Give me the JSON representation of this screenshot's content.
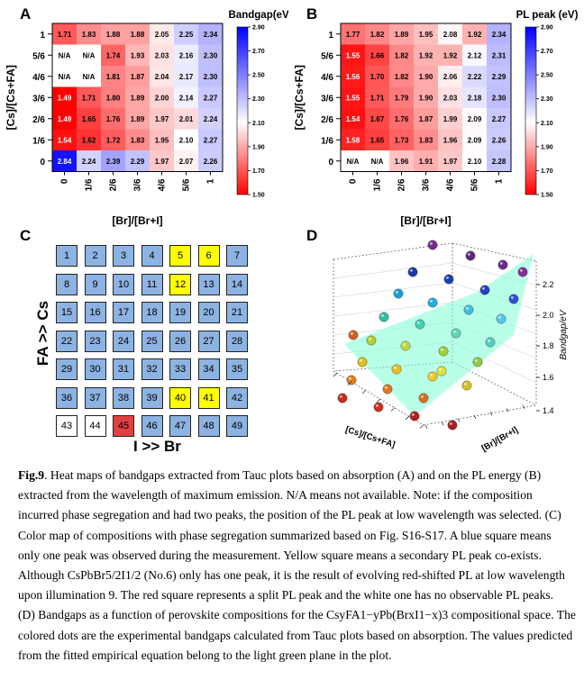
{
  "panels": {
    "A": {
      "letter": "A"
    },
    "B": {
      "letter": "B"
    },
    "C": {
      "letter": "C"
    },
    "D": {
      "letter": "D"
    }
  },
  "chart_data": [
    {
      "type": "heatmap",
      "panel": "A",
      "colorbar_title": "Bandgap(eV)",
      "xlabel": "[Br]/[Br+I]",
      "ylabel": "[Cs]/[Cs+FA]",
      "x_ticks": [
        "0",
        "1/6",
        "2/6",
        "3/6",
        "4/6",
        "5/6",
        "1"
      ],
      "y_ticks": [
        "1",
        "5/6",
        "4/6",
        "3/6",
        "2/6",
        "1/6",
        "0"
      ],
      "cells": [
        [
          "1.71",
          "1.83",
          "1.88",
          "1.88",
          "2.05",
          "2.25",
          "2.34"
        ],
        [
          "N/A",
          "N/A",
          "1.74",
          "1.93",
          "2.03",
          "2.16",
          "2.30"
        ],
        [
          "N/A",
          "N/A",
          "1.81",
          "1.87",
          "2.04",
          "2.17",
          "2.30"
        ],
        [
          "1.49",
          "1.71",
          "1.80",
          "1.89",
          "2.00",
          "2.14",
          "2.27"
        ],
        [
          "1.49",
          "1.65",
          "1.76",
          "1.89",
          "1.97",
          "2.01",
          "2.24"
        ],
        [
          "1.54",
          "1.62",
          "1.72",
          "1.83",
          "1.95",
          "2.10",
          "2.27"
        ],
        [
          "2.84",
          "2.24",
          "2.39",
          "2.29",
          "1.97",
          "2.07",
          "2.26"
        ]
      ],
      "colorbar_ticks": [
        "2.90",
        "2.70",
        "2.50",
        "2.30",
        "2.10",
        "1.90",
        "1.70",
        "1.50"
      ],
      "range": [
        1.5,
        2.9
      ]
    },
    {
      "type": "heatmap",
      "panel": "B",
      "colorbar_title": "PL peak (eV)",
      "xlabel": "[Br]/[Br+I]",
      "ylabel": "[Cs]/[Cs+FA]",
      "x_ticks": [
        "0",
        "1/6",
        "2/6",
        "3/6",
        "4/6",
        "5/6",
        "1"
      ],
      "y_ticks": [
        "1",
        "5/6",
        "4/6",
        "3/6",
        "2/6",
        "1/6",
        "0"
      ],
      "cells": [
        [
          "1.77",
          "1.82",
          "1.89",
          "1.95",
          "2.08",
          "1.92",
          "2.34"
        ],
        [
          "1.55",
          "1.66",
          "1.82",
          "1.92",
          "1.92",
          "2.12",
          "2.31"
        ],
        [
          "1.56",
          "1.70",
          "1.82",
          "1.90",
          "2.06",
          "2.22",
          "2.29"
        ],
        [
          "1.55",
          "1.71",
          "1.79",
          "1.90",
          "2.03",
          "2.18",
          "2.30"
        ],
        [
          "1.54",
          "1.67",
          "1.76",
          "1.87",
          "1.99",
          "2.09",
          "2.27"
        ],
        [
          "1.58",
          "1.65",
          "1.73",
          "1.83",
          "1.96",
          "2.09",
          "2.26"
        ],
        [
          "N/A",
          "N/A",
          "1.96",
          "1.91",
          "1.97",
          "2.10",
          "2.28"
        ]
      ],
      "colorbar_ticks": [
        "2.90",
        "2.70",
        "2.50",
        "2.30",
        "2.10",
        "1.90",
        "1.70",
        "1.50"
      ],
      "range": [
        1.5,
        2.9
      ]
    },
    {
      "type": "table",
      "panel": "C",
      "ylabel": "FA >> Cs",
      "xlabel": "I >> Br",
      "numbers": [
        [
          "1",
          "2",
          "3",
          "4",
          "5",
          "6",
          "7"
        ],
        [
          "8",
          "9",
          "10",
          "11",
          "12",
          "13",
          "14"
        ],
        [
          "15",
          "16",
          "17",
          "18",
          "19",
          "20",
          "21"
        ],
        [
          "22",
          "23",
          "24",
          "25",
          "26",
          "27",
          "28"
        ],
        [
          "29",
          "30",
          "31",
          "32",
          "33",
          "34",
          "35"
        ],
        [
          "36",
          "37",
          "38",
          "39",
          "40",
          "41",
          "42"
        ],
        [
          "43",
          "44",
          "45",
          "46",
          "47",
          "48",
          "49"
        ]
      ],
      "yellow": [
        5,
        6,
        12,
        40,
        41
      ],
      "red": [
        45
      ],
      "white": [
        43,
        44
      ],
      "colors": {
        "blue": "#8db3e2",
        "yellow": "#ffff00",
        "red": "#e04040",
        "white": "#ffffff"
      }
    },
    {
      "type": "scatter",
      "panel": "D",
      "zlabel": "Bandgap/eV",
      "xlabel": "[Cs]/[Cs+FA]",
      "ylabel": "[Br]/[Br+I]",
      "z_ticks": [
        "1.4",
        "1.6",
        "1.8",
        "2.0",
        "2.2"
      ],
      "plane_color": "#7fffd4"
    }
  ],
  "caption": {
    "lines": [
      {
        "bold": "Fig.9",
        "text": ". Heat maps of bandgaps extracted from Tauc plots based on absorption (A) and on the PL energy (B)"
      },
      {
        "text": "extracted from the wavelength of maximum emission. N/A means not available. Note: if the composition"
      },
      {
        "text": "incurred phase segregation and had two peaks, the position of the PL peak at low wavelength was selected. (C)"
      },
      {
        "text": "Color map of compositions with phase segregation summarized based on Fig. S16-S17. A blue square means"
      },
      {
        "text": "only one peak was observed during the measurement. Yellow square means a secondary PL peak co-exists."
      },
      {
        "text": "Although CsPbBr5/2I1/2 (No.6) only has one peak, it is the result of evolving red-shifted PL at low wavelength"
      },
      {
        "text": "upon illumination 9. The red square represents a split PL peak and the white one has no observable PL peaks."
      },
      {
        "text": "(D) Bandgaps as a function of perovskite compositions for the CsyFA1−yPb(BrxI1−x)3 compositional space. The"
      },
      {
        "text": "colored dots are the experimental bandgaps calculated from Tauc plots based on absorption. The values predicted"
      },
      {
        "text": "from the fitted empirical equation belong to the light green plane in the plot."
      }
    ]
  }
}
